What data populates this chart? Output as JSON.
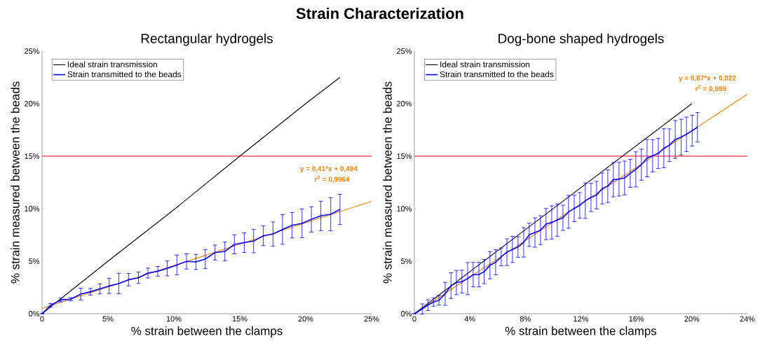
{
  "chart_data": [
    {
      "type": "other",
      "title": "Strain Characterization"
    },
    {
      "type": "line",
      "title": "Rectangular hydrogels",
      "xlabel": "% strain between the clamps",
      "ylabel": "% strain measured between the beads",
      "xlim": [
        0,
        25
      ],
      "ylim": [
        0,
        25
      ],
      "xticks": [
        0,
        {
          "value": 5,
          "label": "5%"
        },
        {
          "value": 10,
          "label": "10%"
        },
        {
          "value": 15,
          "label": "15%"
        },
        {
          "value": 20,
          "label": "20%"
        },
        {
          "value": 25,
          "label": "25%"
        }
      ],
      "yticks": [
        {
          "value": 0,
          "label": "0%"
        },
        {
          "value": 5,
          "label": "5%"
        },
        {
          "value": 10,
          "label": "10%"
        },
        {
          "value": 15,
          "label": "15%"
        },
        {
          "value": 20,
          "label": "20%"
        },
        {
          "value": 25,
          "label": "25%"
        }
      ],
      "legend": "top left",
      "grid": false,
      "marker": "none",
      "line_style": "solid",
      "ref_lines": [
        {
          "axis": "y",
          "value": 15,
          "color": "#ff0000"
        }
      ],
      "annotations": [
        "y = 0,41*x + 0,494",
        "r$^{2}$ = 0,9964"
      ],
      "series": [
        {
          "name": "Ideal strain transmission",
          "color": "#000000",
          "x": [
            0,
            5,
            10,
            15,
            20,
            22.6
          ],
          "values": [
            0,
            5,
            9.9,
            15,
            20,
            22.5
          ]
        },
        {
          "color": "#ff8000",
          "x": [
            0,
            25
          ],
          "values": [
            0.5,
            10.7
          ]
        },
        {
          "name": "Strain transmitted to the beads",
          "color": "#0000ff",
          "x": [
            0,
            0.65,
            1.42,
            2.18,
            2.93,
            3.67,
            4.38,
            5.09,
            5.82,
            6.56,
            7.31,
            8.03,
            8.78,
            9.49,
            10.23,
            10.96,
            11.67,
            12.38,
            13.12,
            13.87,
            14.59,
            15.34,
            16.05,
            16.79,
            17.52,
            18.24,
            18.97,
            19.72,
            20.43,
            21.15,
            21.9,
            22.6
          ],
          "values": [
            0,
            0.8,
            1.31,
            1.38,
            1.87,
            2.09,
            2.36,
            2.64,
            2.87,
            3.24,
            3.42,
            3.87,
            4.04,
            4.31,
            4.64,
            4.98,
            4.93,
            5.2,
            5.82,
            5.93,
            6.6,
            6.76,
            6.91,
            7.42,
            7.58,
            8.02,
            8.42,
            8.6,
            8.98,
            9.31,
            9.47,
            9.93
          ],
          "errors": [
            null,
            0.18,
            0.19,
            0.15,
            0.56,
            0.31,
            0.48,
            0.72,
            0.98,
            0.59,
            0.54,
            0.47,
            0.46,
            0.71,
            0.94,
            0.72,
            0.72,
            0.91,
            0.71,
            0.89,
            0.9,
            0.93,
            1.11,
            0.94,
            1.16,
            1.41,
            1.21,
            1.37,
            1.2,
            1.4,
            1.58,
            1.44
          ]
        }
      ]
    },
    {
      "type": "line",
      "title": "Dog-bone shaped hydrogels",
      "xlabel": "% strain between the clamps",
      "ylabel": "% strain measured between the beads",
      "xlim": [
        0,
        24
      ],
      "ylim": [
        0,
        25
      ],
      "xticks": [
        0,
        {
          "value": 4,
          "label": "4%"
        },
        {
          "value": 8,
          "label": "8%"
        },
        {
          "value": 12,
          "label": "12%"
        },
        {
          "value": 16,
          "label": "16%"
        },
        {
          "value": 20,
          "label": "20%"
        },
        {
          "value": 24,
          "label": "24%"
        }
      ],
      "yticks": [
        {
          "value": 0,
          "label": "0%"
        },
        {
          "value": 5,
          "label": "5%"
        },
        {
          "value": 10,
          "label": "10%"
        },
        {
          "value": 15,
          "label": "15%"
        },
        {
          "value": 20,
          "label": "20%"
        },
        {
          "value": 25,
          "label": "25%"
        }
      ],
      "legend": "top left",
      "grid": false,
      "marker": "none",
      "line_style": "solid",
      "ref_lines": [
        {
          "axis": "y",
          "value": 15,
          "color": "#ff0000"
        }
      ],
      "annotations": [
        "y = 0,87*x + 0,022",
        "r$^{2}$ = 0,999"
      ],
      "series": [
        {
          "name": "Ideal strain transmission",
          "color": "#000000",
          "x": [
            0,
            20
          ],
          "values": [
            0,
            20
          ]
        },
        {
          "color": "#ff8000",
          "x": [
            0,
            24
          ],
          "values": [
            0,
            20.9
          ]
        },
        {
          "name": "Strain transmitted to the beads",
          "color": "#0000ff",
          "x": [
            0,
            0.57,
            0.98,
            1.38,
            1.77,
            2.22,
            2.64,
            3.03,
            3.43,
            3.84,
            4.24,
            4.65,
            5.03,
            5.45,
            5.86,
            6.26,
            6.67,
            7.07,
            7.47,
            7.88,
            8.28,
            8.69,
            9.09,
            9.49,
            9.9,
            10.3,
            10.71,
            11.11,
            11.52,
            11.92,
            12.32,
            12.73,
            13.13,
            13.54,
            13.94,
            14.34,
            14.75,
            15.15,
            15.56,
            15.96,
            16.36,
            16.77,
            17.17,
            17.58,
            17.98,
            18.38,
            18.8,
            19.23,
            19.61,
            20.02,
            20.4
          ],
          "values": [
            0,
            0.45,
            0.82,
            1.11,
            1.27,
            1.89,
            2.67,
            2.96,
            3.05,
            3.34,
            3.72,
            3.72,
            4.01,
            4.61,
            4.9,
            5.41,
            5.86,
            6.12,
            6.35,
            6.79,
            7.51,
            7.73,
            7.95,
            8.53,
            8.69,
            8.91,
            9.13,
            9.69,
            10.02,
            10.31,
            10.76,
            11.07,
            11.29,
            11.92,
            12.14,
            12.76,
            12.81,
            12.92,
            13.36,
            13.74,
            14.19,
            14.81,
            15.03,
            15.26,
            15.75,
            16.04,
            16.59,
            16.82,
            17.08,
            17.42,
            17.75
          ],
          "errors": [
            null,
            0.48,
            0.51,
            0.4,
            0.45,
            1.09,
            1.22,
            1.15,
            1.09,
            1.53,
            1.17,
            1.17,
            1.15,
            1.29,
            1.19,
            0.85,
            1.27,
            1.25,
            0.98,
            1.4,
            1.11,
            1.4,
            1.37,
            1.48,
            1.58,
            1.54,
            1.2,
            1.56,
            1.26,
            1.22,
            1.69,
            1.34,
            1.31,
            1.47,
            1.55,
            1.63,
            1.61,
            1.61,
            1.33,
            1.67,
            1.48,
            1.78,
            1.53,
            1.43,
            1.86,
            1.56,
            1.8,
            1.7,
            1.64,
            1.47,
            1.41
          ]
        }
      ]
    }
  ]
}
